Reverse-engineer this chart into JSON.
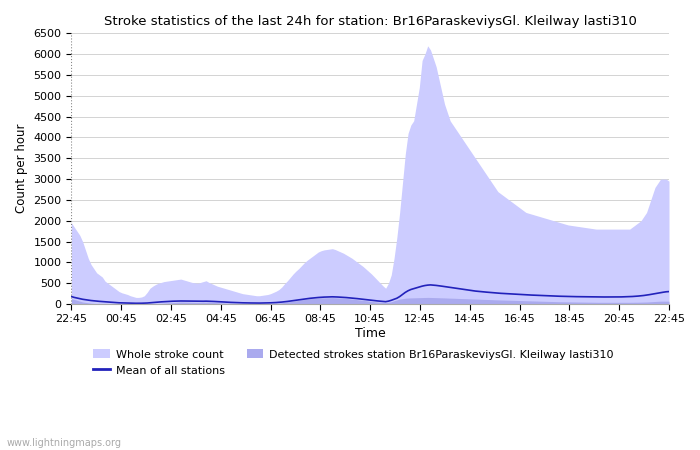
{
  "title": "Stroke statistics of the last 24h for station: Br16ParaskeviysGl. Kleilway lasti310",
  "xlabel": "Time",
  "ylabel": "Count per hour",
  "xlim_labels": [
    "22:45",
    "00:45",
    "02:45",
    "04:45",
    "06:45",
    "08:45",
    "10:45",
    "12:45",
    "14:45",
    "16:45",
    "18:45",
    "20:45",
    "22:45"
  ],
  "ylim": [
    0,
    6500
  ],
  "yticks": [
    0,
    500,
    1000,
    1500,
    2000,
    2500,
    3000,
    3500,
    4000,
    4500,
    5000,
    5500,
    6000,
    6500
  ],
  "whole_stroke_color": "#ccccff",
  "detected_stroke_color": "#aaaaee",
  "mean_line_color": "#2222bb",
  "background_color": "#ffffff",
  "watermark": "www.lightningmaps.org",
  "legend_labels": [
    "Whole stroke count",
    "Mean of all stations",
    "Detected strokes station Br16ParaskeviysGl. Kleilway lasti310"
  ],
  "whole_stroke_data": [
    1950,
    1850,
    1750,
    1650,
    1500,
    1300,
    1100,
    950,
    850,
    750,
    700,
    650,
    550,
    500,
    450,
    400,
    350,
    300,
    270,
    250,
    230,
    200,
    180,
    160,
    160,
    170,
    200,
    280,
    380,
    430,
    470,
    500,
    520,
    540,
    550,
    560,
    570,
    580,
    590,
    600,
    580,
    560,
    540,
    520,
    510,
    500,
    520,
    540,
    560,
    520,
    490,
    460,
    430,
    410,
    390,
    370,
    350,
    330,
    310,
    290,
    270,
    250,
    240,
    230,
    220,
    210,
    200,
    200,
    210,
    220,
    230,
    250,
    280,
    310,
    350,
    410,
    490,
    560,
    640,
    720,
    790,
    850,
    920,
    990,
    1050,
    1100,
    1150,
    1200,
    1250,
    1280,
    1300,
    1310,
    1320,
    1330,
    1310,
    1280,
    1250,
    1220,
    1180,
    1140,
    1100,
    1050,
    1000,
    950,
    900,
    840,
    780,
    720,
    650,
    580,
    510,
    440,
    380,
    500,
    700,
    1100,
    1600,
    2200,
    2900,
    3600,
    4100,
    4300,
    4400,
    4800,
    5200,
    5850,
    6000,
    6200,
    6100,
    5900,
    5700,
    5400,
    5100,
    4800,
    4600,
    4400,
    4300,
    4200,
    4100,
    4000,
    3900,
    3800,
    3700,
    3600,
    3500,
    3400,
    3300,
    3200,
    3100,
    3000,
    2900,
    2800,
    2700,
    2650,
    2600,
    2550,
    2500,
    2450,
    2400,
    2350,
    2300,
    2250,
    2200,
    2180,
    2160,
    2140,
    2120,
    2100,
    2080,
    2060,
    2040,
    2020,
    2000,
    1980,
    1960,
    1940,
    1920,
    1900,
    1890,
    1880,
    1870,
    1860,
    1850,
    1840,
    1830,
    1820,
    1810,
    1800,
    1800,
    1800,
    1800,
    1800,
    1800,
    1800,
    1800,
    1800,
    1800,
    1800,
    1800,
    1800,
    1850,
    1900,
    1950,
    2000,
    2100,
    2200,
    2400,
    2600,
    2800,
    2900,
    3000,
    3000,
    3000,
    2950
  ],
  "detected_stroke_data": [
    130,
    110,
    90,
    70,
    50,
    40,
    30,
    20,
    15,
    10,
    8,
    6,
    4,
    3,
    2,
    2,
    1,
    1,
    1,
    1,
    1,
    1,
    1,
    1,
    1,
    1,
    1,
    2,
    3,
    5,
    8,
    10,
    15,
    20,
    25,
    30,
    35,
    40,
    45,
    50,
    48,
    46,
    44,
    42,
    40,
    38,
    40,
    42,
    44,
    42,
    38,
    35,
    32,
    28,
    25,
    22,
    20,
    18,
    16,
    14,
    12,
    10,
    9,
    8,
    7,
    6,
    6,
    6,
    7,
    8,
    10,
    12,
    15,
    20,
    25,
    32,
    40,
    50,
    60,
    70,
    80,
    90,
    100,
    110,
    120,
    130,
    135,
    140,
    145,
    148,
    150,
    152,
    153,
    155,
    152,
    148,
    144,
    140,
    135,
    128,
    120,
    112,
    104,
    96,
    88,
    80,
    72,
    64,
    56,
    50,
    44,
    38,
    33,
    42,
    55,
    80,
    100,
    120,
    130,
    140,
    145,
    148,
    150,
    152,
    154,
    156,
    158,
    160,
    158,
    156,
    154,
    152,
    150,
    148,
    145,
    142,
    140,
    138,
    135,
    132,
    130,
    128,
    125,
    122,
    120,
    118,
    115,
    112,
    110,
    108,
    105,
    102,
    100,
    98,
    96,
    94,
    92,
    90,
    88,
    86,
    84,
    82,
    80,
    78,
    76,
    74,
    72,
    70,
    68,
    66,
    64,
    62,
    60,
    58,
    56,
    55,
    54,
    53,
    52,
    51,
    50,
    49,
    48,
    47,
    46,
    45,
    44,
    43,
    42,
    42,
    42,
    42,
    42,
    42,
    42,
    42,
    42,
    42,
    42,
    42,
    43,
    44,
    45,
    46,
    48,
    50,
    54,
    58,
    62,
    66,
    70,
    70,
    70,
    68
  ],
  "mean_line_data": [
    180,
    160,
    145,
    130,
    115,
    105,
    95,
    85,
    78,
    70,
    65,
    60,
    54,
    48,
    43,
    38,
    34,
    30,
    28,
    26,
    24,
    22,
    20,
    19,
    19,
    20,
    22,
    25,
    30,
    36,
    42,
    48,
    53,
    57,
    61,
    65,
    68,
    70,
    72,
    74,
    73,
    72,
    70,
    68,
    67,
    66,
    67,
    68,
    70,
    68,
    65,
    62,
    58,
    54,
    50,
    46,
    43,
    40,
    37,
    35,
    32,
    30,
    28,
    27,
    26,
    25,
    24,
    24,
    25,
    26,
    28,
    30,
    33,
    37,
    42,
    48,
    55,
    63,
    72,
    82,
    92,
    100,
    110,
    120,
    130,
    138,
    145,
    152,
    158,
    163,
    167,
    170,
    172,
    174,
    172,
    169,
    165,
    161,
    156,
    150,
    144,
    137,
    130,
    122,
    114,
    106,
    98,
    91,
    83,
    76,
    69,
    63,
    57,
    70,
    90,
    115,
    140,
    180,
    230,
    280,
    320,
    350,
    370,
    390,
    410,
    430,
    445,
    455,
    460,
    455,
    448,
    440,
    430,
    420,
    410,
    400,
    390,
    380,
    370,
    360,
    350,
    340,
    330,
    320,
    312,
    305,
    298,
    292,
    286,
    280,
    274,
    268,
    262,
    258,
    254,
    250,
    246,
    242,
    238,
    234,
    230,
    226,
    222,
    219,
    216,
    213,
    210,
    207,
    204,
    201,
    198,
    195,
    192,
    190,
    188,
    186,
    184,
    182,
    180,
    179,
    178,
    177,
    176,
    175,
    174,
    173,
    172,
    171,
    170,
    170,
    170,
    170,
    170,
    170,
    170,
    170,
    172,
    174,
    176,
    178,
    182,
    186,
    192,
    198,
    206,
    215,
    226,
    238,
    250,
    262,
    275,
    285,
    295,
    300
  ]
}
